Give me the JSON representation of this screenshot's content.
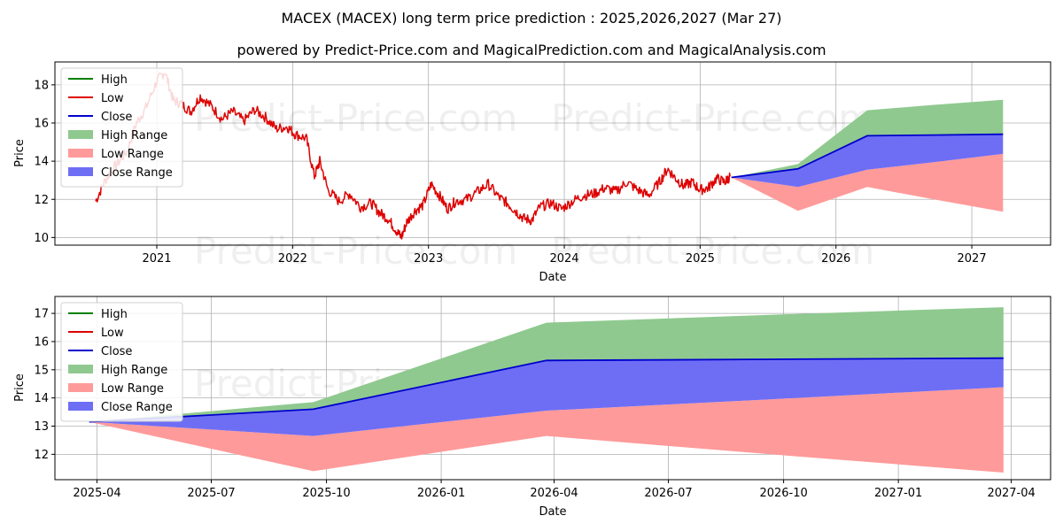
{
  "title": "MACEX (MACEX) long term price prediction : 2025,2026,2027 (Mar 27)",
  "subtitle": "powered by Predict-Price.com and MagicalPrediction.com and MagicalAnalysis.com",
  "watermark": "Predict-Price.com",
  "colors": {
    "high": "#008000",
    "low": "#dd0000",
    "close": "#0000cc",
    "high_range": "#8fc98f",
    "low_range": "#ff9a9a",
    "close_range": "#6e6ef5"
  },
  "chart_data": [
    {
      "type": "line",
      "id": "top",
      "xlabel": "Date",
      "ylabel": "Price",
      "xlim": [
        2020.25,
        2027.58
      ],
      "ylim": [
        9.6,
        19.2
      ],
      "xticks": [
        2021,
        2022,
        2023,
        2024,
        2025,
        2026,
        2027
      ],
      "xtick_labels": [
        "2021",
        "2022",
        "2023",
        "2024",
        "2025",
        "2026",
        "2027"
      ],
      "yticks": [
        10,
        12,
        14,
        16,
        18
      ],
      "grid": true,
      "legend": {
        "position": "top-left",
        "items": [
          {
            "label": "High",
            "kind": "line",
            "color_key": "high"
          },
          {
            "label": "Low",
            "kind": "line",
            "color_key": "low"
          },
          {
            "label": "Close",
            "kind": "line",
            "color_key": "close"
          },
          {
            "label": "High Range",
            "kind": "patch",
            "color_key": "high_range"
          },
          {
            "label": "Low Range",
            "kind": "patch",
            "color_key": "low_range"
          },
          {
            "label": "Close Range",
            "kind": "patch",
            "color_key": "close_range"
          }
        ]
      },
      "history": {
        "name": "Low",
        "x": [
          2020.55,
          2020.62,
          2020.7,
          2020.78,
          2020.85,
          2020.92,
          2021.0,
          2021.06,
          2021.12,
          2021.18,
          2021.25,
          2021.32,
          2021.4,
          2021.48,
          2021.56,
          2021.64,
          2021.72,
          2021.8,
          2021.88,
          2021.96,
          2022.02,
          2022.1,
          2022.16,
          2022.2,
          2022.26,
          2022.34,
          2022.42,
          2022.5,
          2022.58,
          2022.64,
          2022.7,
          2022.76,
          2022.8,
          2022.84,
          2022.9,
          2022.96,
          2023.02,
          2023.08,
          2023.14,
          2023.2,
          2023.28,
          2023.36,
          2023.44,
          2023.52,
          2023.58,
          2023.64,
          2023.7,
          2023.76,
          2023.82,
          2023.9,
          2023.98,
          2024.06,
          2024.14,
          2024.22,
          2024.3,
          2024.38,
          2024.46,
          2024.54,
          2024.62,
          2024.7,
          2024.76,
          2024.82,
          2024.88,
          2024.94,
          2025.0,
          2025.06,
          2025.12,
          2025.18,
          2025.22
        ],
        "values": [
          11.9,
          13.0,
          13.8,
          14.5,
          16.0,
          16.8,
          18.2,
          18.7,
          17.2,
          17.0,
          16.6,
          17.4,
          16.9,
          16.2,
          16.6,
          16.1,
          16.7,
          16.3,
          15.7,
          15.8,
          15.4,
          15.2,
          13.2,
          14.0,
          12.5,
          11.9,
          12.3,
          11.6,
          11.8,
          11.3,
          11.0,
          10.4,
          10.0,
          10.8,
          11.4,
          11.7,
          12.8,
          12.2,
          11.5,
          11.9,
          12.0,
          12.4,
          12.8,
          12.1,
          11.8,
          11.4,
          11.0,
          10.9,
          11.6,
          11.8,
          11.5,
          11.9,
          12.2,
          12.3,
          12.6,
          12.4,
          12.9,
          12.5,
          12.2,
          12.9,
          13.6,
          13.1,
          12.7,
          12.9,
          12.5,
          12.6,
          13.1,
          12.9,
          13.2
        ]
      },
      "forecast": {
        "x": [
          2025.23,
          2025.72,
          2026.23,
          2026.72,
          2027.23
        ],
        "close": [
          13.15,
          13.6,
          15.33,
          15.37,
          15.41
        ],
        "high_range": {
          "upper": [
            13.15,
            13.85,
            16.67,
            16.95,
            17.22
          ],
          "lower": [
            13.15,
            13.6,
            15.33,
            15.37,
            15.41
          ]
        },
        "close_range": {
          "upper": [
            13.15,
            13.6,
            15.33,
            15.37,
            15.41
          ],
          "lower": [
            13.15,
            12.65,
            13.55,
            13.95,
            14.38
          ]
        },
        "low_range": {
          "upper": [
            13.15,
            12.65,
            13.55,
            13.95,
            14.38
          ],
          "lower": [
            13.15,
            11.4,
            12.65,
            12.0,
            11.35
          ]
        }
      }
    },
    {
      "type": "line",
      "id": "bottom",
      "xlabel": "Date",
      "ylabel": "Price",
      "xlim": [
        2025.155,
        2027.333
      ],
      "ylim": [
        11.1,
        17.6
      ],
      "xticks": [
        2025.247,
        2025.497,
        2025.749,
        2026.0,
        2026.247,
        2026.497,
        2026.749,
        2027.0,
        2027.247
      ],
      "xtick_labels": [
        "2025-04",
        "2025-07",
        "2025-10",
        "2026-01",
        "2026-04",
        "2026-07",
        "2026-10",
        "2027-01",
        "2027-04"
      ],
      "yticks": [
        12,
        13,
        14,
        15,
        16,
        17
      ],
      "grid": true,
      "legend": {
        "position": "top-left",
        "items": [
          {
            "label": "High",
            "kind": "line",
            "color_key": "high"
          },
          {
            "label": "Low",
            "kind": "line",
            "color_key": "low"
          },
          {
            "label": "Close",
            "kind": "line",
            "color_key": "close"
          },
          {
            "label": "High Range",
            "kind": "patch",
            "color_key": "high_range"
          },
          {
            "label": "Low Range",
            "kind": "patch",
            "color_key": "low_range"
          },
          {
            "label": "Close Range",
            "kind": "patch",
            "color_key": "close_range"
          }
        ]
      },
      "forecast": {
        "x": [
          2025.23,
          2025.72,
          2026.23,
          2026.72,
          2027.23
        ],
        "close": [
          13.15,
          13.6,
          15.33,
          15.37,
          15.41
        ],
        "high_range": {
          "upper": [
            13.15,
            13.85,
            16.67,
            16.95,
            17.22
          ],
          "lower": [
            13.15,
            13.6,
            15.33,
            15.37,
            15.41
          ]
        },
        "close_range": {
          "upper": [
            13.15,
            13.6,
            15.33,
            15.37,
            15.41
          ],
          "lower": [
            13.15,
            12.65,
            13.55,
            13.95,
            14.38
          ]
        },
        "low_range": {
          "upper": [
            13.15,
            12.65,
            13.55,
            13.95,
            14.38
          ],
          "lower": [
            13.15,
            11.4,
            12.65,
            12.0,
            11.35
          ]
        }
      }
    }
  ]
}
